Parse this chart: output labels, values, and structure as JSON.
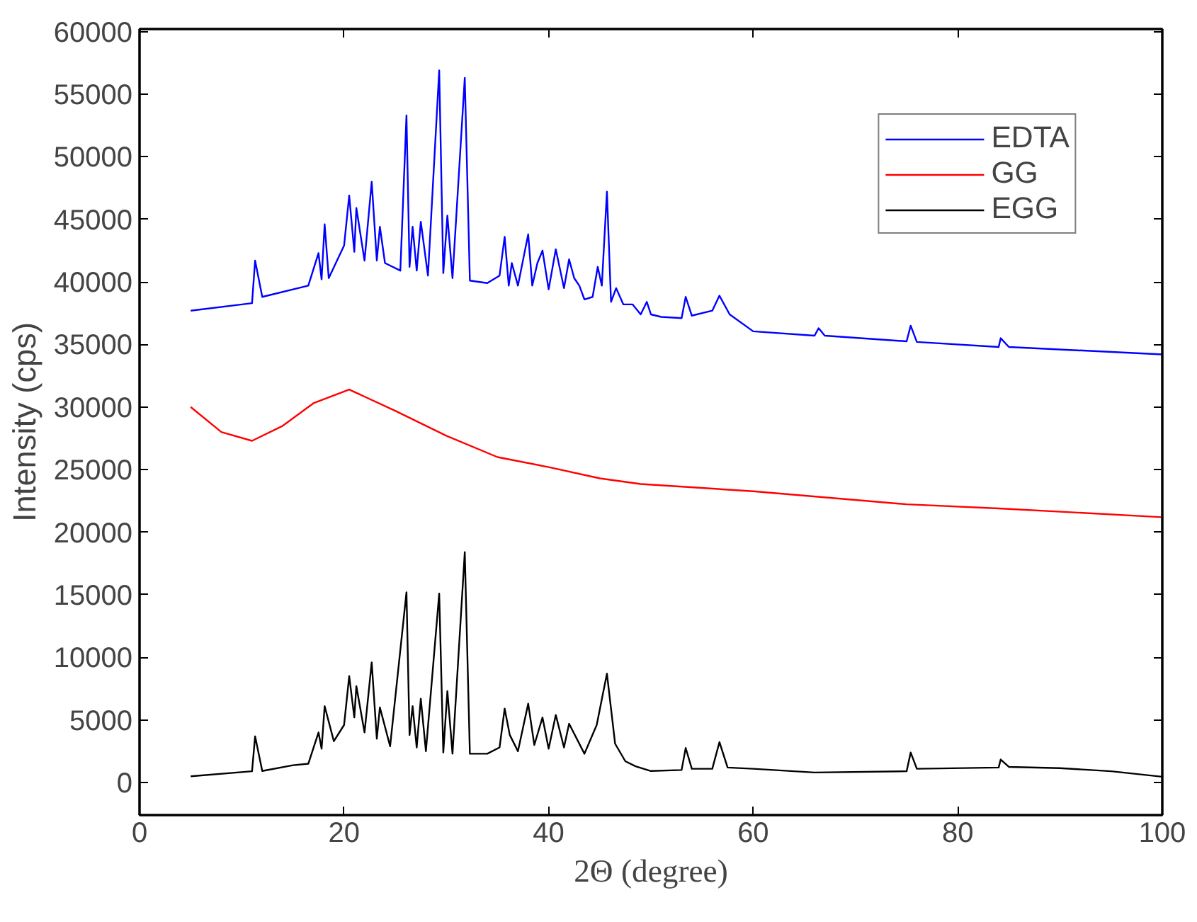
{
  "chart_data": {
    "type": "line",
    "xlabel": "2Θ (degree)",
    "ylabel": "Intensity (cps)",
    "xlim": [
      0,
      100
    ],
    "ylim": [
      -2600,
      60200
    ],
    "xticks": [
      0,
      20,
      40,
      60,
      80,
      100
    ],
    "yticks": [
      0,
      5000,
      10000,
      15000,
      20000,
      25000,
      30000,
      35000,
      40000,
      45000,
      50000,
      55000,
      60000
    ],
    "grid": false,
    "legend": "top right",
    "marker": "none",
    "line_style": "solid",
    "series": [
      {
        "name": "EDTA",
        "color": "#0000ff",
        "x": [
          5,
          11,
          11.3,
          12,
          16.5,
          17.5,
          17.8,
          18.1,
          18.5,
          20,
          20.5,
          21,
          21.2,
          22,
          22.7,
          23.2,
          23.5,
          24,
          25.5,
          26.1,
          26.4,
          26.7,
          27.1,
          27.5,
          28.2,
          29.3,
          29.7,
          30.1,
          30.6,
          31.8,
          32.3,
          34,
          35.2,
          35.7,
          36.1,
          36.4,
          37,
          38,
          38.4,
          38.9,
          39.4,
          40,
          40.7,
          41.5,
          42,
          42.5,
          43,
          43.5,
          44.3,
          44.8,
          45.2,
          45.7,
          46.1,
          46.6,
          47.3,
          48.2,
          49,
          49.6,
          50,
          51,
          53,
          53.4,
          54,
          56,
          56.7,
          57.7,
          60,
          66,
          66.4,
          67,
          75,
          75.4,
          76,
          84,
          84.2,
          85,
          100
        ],
        "values": [
          37700,
          38300,
          41700,
          38800,
          39700,
          42300,
          40200,
          44600,
          40300,
          42900,
          46900,
          42400,
          45900,
          41700,
          48000,
          41700,
          44400,
          41500,
          40900,
          53300,
          41200,
          44400,
          40900,
          44800,
          40500,
          56900,
          40700,
          45300,
          40300,
          56300,
          40100,
          39900,
          40500,
          43600,
          39700,
          41500,
          39700,
          43800,
          39700,
          41500,
          42500,
          39400,
          42600,
          39500,
          41800,
          40300,
          39700,
          38600,
          38800,
          41200,
          39700,
          47200,
          38400,
          39500,
          38200,
          38200,
          37400,
          38400,
          37400,
          37200,
          37100,
          38800,
          37300,
          37700,
          38900,
          37400,
          36050,
          35700,
          36300,
          35700,
          35250,
          36500,
          35200,
          34800,
          35500,
          34800,
          34200
        ]
      },
      {
        "name": "GG",
        "color": "#ff0000",
        "x": [
          5,
          8,
          11,
          14,
          17,
          20.5,
          25,
          30,
          35,
          40,
          45,
          49,
          60,
          75,
          84,
          100
        ],
        "values": [
          30000,
          28000,
          27300,
          28500,
          30300,
          31400,
          29700,
          27700,
          26000,
          25200,
          24300,
          23850,
          23270,
          22230,
          21900,
          21200
        ]
      },
      {
        "name": "EGG",
        "color": "#000000",
        "x": [
          5,
          11,
          11.3,
          12,
          15,
          16.5,
          17.5,
          17.8,
          18.1,
          19,
          20,
          20.5,
          21,
          21.2,
          22,
          22.7,
          23.2,
          23.5,
          24.5,
          26.1,
          26.4,
          26.7,
          27.1,
          27.5,
          28,
          29.3,
          29.7,
          30.1,
          30.6,
          31.8,
          32.3,
          34,
          35.2,
          35.7,
          36.2,
          37,
          38,
          38.6,
          39.4,
          40,
          40.7,
          41.5,
          42,
          43.5,
          44.7,
          45.7,
          46.5,
          47.5,
          48.5,
          50,
          53,
          53.4,
          54,
          56,
          56.7,
          57.5,
          60,
          66,
          75,
          75.4,
          76,
          84,
          84.2,
          85,
          90,
          95,
          100
        ],
        "values": [
          500,
          900,
          3690,
          920,
          1380,
          1500,
          4000,
          2700,
          6100,
          3300,
          4600,
          8500,
          5200,
          7700,
          4000,
          9600,
          3500,
          6000,
          2900,
          15200,
          3800,
          6100,
          2800,
          6700,
          2500,
          15100,
          2400,
          7300,
          2300,
          18400,
          2300,
          2300,
          2800,
          5900,
          3800,
          2500,
          6300,
          3000,
          5200,
          2700,
          5400,
          2800,
          4700,
          2300,
          4600,
          8700,
          3100,
          1700,
          1300,
          920,
          1000,
          2760,
          1100,
          1100,
          3230,
          1200,
          1100,
          800,
          900,
          2400,
          1100,
          1200,
          1840,
          1250,
          1150,
          900,
          460
        ]
      }
    ]
  }
}
